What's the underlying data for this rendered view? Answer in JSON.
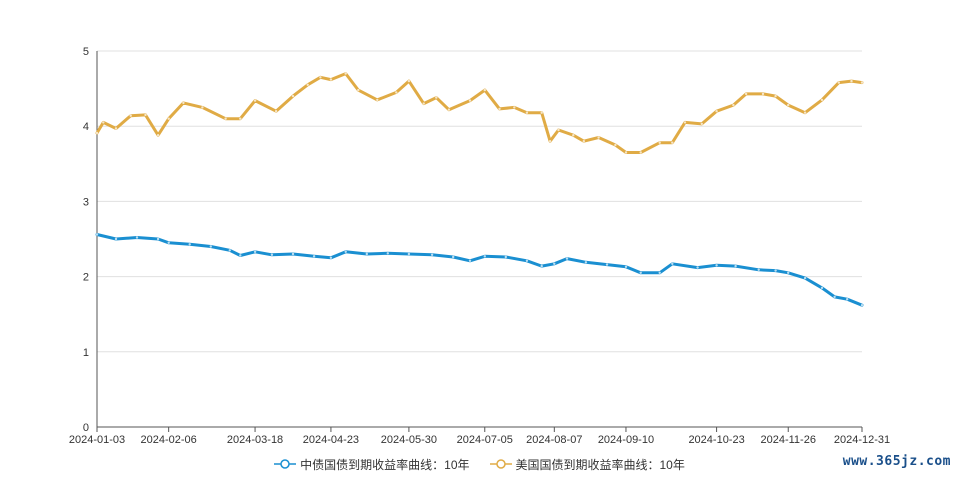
{
  "chart_data": {
    "type": "line",
    "title": "",
    "xlabel": "",
    "ylabel": "",
    "ylim": [
      0,
      5
    ],
    "yticks": [
      "0",
      "1",
      "2",
      "3",
      "4",
      "5"
    ],
    "x_tick_labels": [
      "2024-01-03",
      "2024-02-06",
      "2024-03-18",
      "2024-04-23",
      "2024-05-30",
      "2024-07-05",
      "2024-08-07",
      "2024-09-10",
      "2024-10-23",
      "2024-11-26",
      "2024-12-31"
    ],
    "grid": true,
    "legend_position": "bottom",
    "series": [
      {
        "name": "中债国债到期收益率曲线：10年",
        "color": "#1a8fd1",
        "points": [
          [
            "2024-01-03",
            2.56
          ],
          [
            "2024-01-12",
            2.5
          ],
          [
            "2024-01-22",
            2.52
          ],
          [
            "2024-02-01",
            2.5
          ],
          [
            "2024-02-06",
            2.45
          ],
          [
            "2024-02-16",
            2.43
          ],
          [
            "2024-02-26",
            2.4
          ],
          [
            "2024-03-06",
            2.35
          ],
          [
            "2024-03-11",
            2.28
          ],
          [
            "2024-03-18",
            2.33
          ],
          [
            "2024-03-26",
            2.29
          ],
          [
            "2024-04-05",
            2.3
          ],
          [
            "2024-04-15",
            2.27
          ],
          [
            "2024-04-23",
            2.25
          ],
          [
            "2024-04-30",
            2.33
          ],
          [
            "2024-05-10",
            2.3
          ],
          [
            "2024-05-20",
            2.31
          ],
          [
            "2024-05-30",
            2.3
          ],
          [
            "2024-06-10",
            2.29
          ],
          [
            "2024-06-20",
            2.26
          ],
          [
            "2024-06-28",
            2.21
          ],
          [
            "2024-07-05",
            2.27
          ],
          [
            "2024-07-15",
            2.26
          ],
          [
            "2024-07-25",
            2.21
          ],
          [
            "2024-08-01",
            2.14
          ],
          [
            "2024-08-07",
            2.17
          ],
          [
            "2024-08-13",
            2.24
          ],
          [
            "2024-08-22",
            2.19
          ],
          [
            "2024-09-01",
            2.16
          ],
          [
            "2024-09-10",
            2.13
          ],
          [
            "2024-09-17",
            2.05
          ],
          [
            "2024-09-26",
            2.05
          ],
          [
            "2024-10-02",
            2.17
          ],
          [
            "2024-10-14",
            2.12
          ],
          [
            "2024-10-23",
            2.15
          ],
          [
            "2024-11-01",
            2.14
          ],
          [
            "2024-11-12",
            2.09
          ],
          [
            "2024-11-20",
            2.08
          ],
          [
            "2024-11-26",
            2.05
          ],
          [
            "2024-12-04",
            1.98
          ],
          [
            "2024-12-12",
            1.85
          ],
          [
            "2024-12-18",
            1.73
          ],
          [
            "2024-12-24",
            1.7
          ],
          [
            "2024-12-31",
            1.62
          ]
        ]
      },
      {
        "name": "美国国债到期收益率曲线：10年",
        "color": "#e0ab45",
        "points": [
          [
            "2024-01-03",
            3.91
          ],
          [
            "2024-01-06",
            4.05
          ],
          [
            "2024-01-12",
            3.97
          ],
          [
            "2024-01-19",
            4.14
          ],
          [
            "2024-01-26",
            4.15
          ],
          [
            "2024-02-01",
            3.88
          ],
          [
            "2024-02-06",
            4.1
          ],
          [
            "2024-02-13",
            4.31
          ],
          [
            "2024-02-22",
            4.25
          ],
          [
            "2024-03-04",
            4.1
          ],
          [
            "2024-03-11",
            4.1
          ],
          [
            "2024-03-18",
            4.34
          ],
          [
            "2024-03-28",
            4.2
          ],
          [
            "2024-04-05",
            4.4
          ],
          [
            "2024-04-12",
            4.55
          ],
          [
            "2024-04-18",
            4.65
          ],
          [
            "2024-04-23",
            4.62
          ],
          [
            "2024-04-30",
            4.7
          ],
          [
            "2024-05-06",
            4.48
          ],
          [
            "2024-05-15",
            4.35
          ],
          [
            "2024-05-24",
            4.45
          ],
          [
            "2024-05-30",
            4.6
          ],
          [
            "2024-06-06",
            4.3
          ],
          [
            "2024-06-12",
            4.38
          ],
          [
            "2024-06-18",
            4.22
          ],
          [
            "2024-06-28",
            4.34
          ],
          [
            "2024-07-05",
            4.48
          ],
          [
            "2024-07-12",
            4.23
          ],
          [
            "2024-07-19",
            4.25
          ],
          [
            "2024-07-25",
            4.18
          ],
          [
            "2024-08-01",
            4.18
          ],
          [
            "2024-08-05",
            3.8
          ],
          [
            "2024-08-09",
            3.95
          ],
          [
            "2024-08-16",
            3.88
          ],
          [
            "2024-08-21",
            3.8
          ],
          [
            "2024-08-28",
            3.85
          ],
          [
            "2024-09-05",
            3.75
          ],
          [
            "2024-09-10",
            3.65
          ],
          [
            "2024-09-17",
            3.65
          ],
          [
            "2024-09-26",
            3.78
          ],
          [
            "2024-10-02",
            3.78
          ],
          [
            "2024-10-08",
            4.05
          ],
          [
            "2024-10-16",
            4.03
          ],
          [
            "2024-10-23",
            4.2
          ],
          [
            "2024-10-31",
            4.28
          ],
          [
            "2024-11-06",
            4.43
          ],
          [
            "2024-11-14",
            4.43
          ],
          [
            "2024-11-20",
            4.4
          ],
          [
            "2024-11-26",
            4.28
          ],
          [
            "2024-12-04",
            4.18
          ],
          [
            "2024-12-12",
            4.35
          ],
          [
            "2024-12-20",
            4.58
          ],
          [
            "2024-12-26",
            4.6
          ],
          [
            "2024-12-31",
            4.58
          ]
        ]
      }
    ]
  },
  "watermark": "www.365jz.com"
}
